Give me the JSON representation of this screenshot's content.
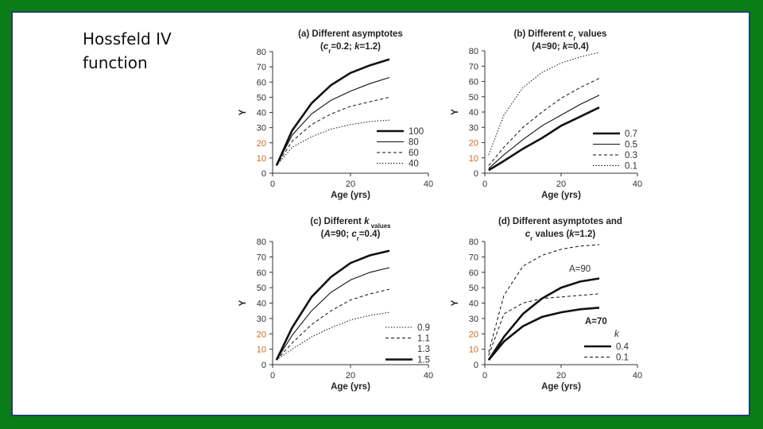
{
  "slide": {
    "title_line1": "Hossfeld IV",
    "title_line2": "function"
  },
  "colors": {
    "frame": "#0a7d16",
    "border": "#1d3f6e",
    "tick_label": "#c96a1a"
  },
  "chart_data": [
    {
      "type": "line",
      "title": "(a)  Different asymptotes",
      "subtitle": "(cr=0.2; k=1.2)",
      "subtitle_parts": [
        "(",
        "c",
        "r",
        "=0.2; ",
        "k",
        "=1.2)"
      ],
      "xlabel": "Age (yrs)",
      "ylabel": "Y",
      "xlim": [
        0,
        40
      ],
      "ylim": [
        0,
        80
      ],
      "xticks": [
        "0",
        "20",
        "40"
      ],
      "yticks": [
        "0",
        "10",
        "20",
        "30",
        "40",
        "50",
        "60",
        "70",
        "80"
      ],
      "x": [
        1,
        5,
        10,
        15,
        20,
        25,
        30
      ],
      "legend_title": "",
      "legend": [
        "100",
        "80",
        "60",
        "40"
      ],
      "series": [
        {
          "name": "100",
          "style": "thick",
          "values": [
            5,
            28,
            46,
            58,
            66,
            71,
            75
          ]
        },
        {
          "name": "80",
          "style": "solid",
          "values": [
            5,
            25,
            39,
            48,
            54,
            59,
            63
          ]
        },
        {
          "name": "60",
          "style": "dashed",
          "values": [
            5,
            21,
            32,
            39,
            44,
            47,
            50
          ]
        },
        {
          "name": "40",
          "style": "dotted",
          "values": [
            5,
            17,
            24,
            29,
            32,
            34,
            35
          ]
        }
      ]
    },
    {
      "type": "line",
      "title": "(b)  Different cr values",
      "title_parts": [
        "(b)  Different ",
        "c",
        "r",
        " values"
      ],
      "subtitle": "(A=90; k=0.4)",
      "subtitle_parts": [
        "(",
        "A",
        "=90; ",
        "k",
        "=0.4)"
      ],
      "xlabel": "Age (yrs)",
      "ylabel": "Y",
      "xlim": [
        0,
        40
      ],
      "ylim": [
        0,
        80
      ],
      "xticks": [
        "0",
        "20",
        "40"
      ],
      "yticks": [
        "0",
        "10",
        "20",
        "30",
        "40",
        "50",
        "60",
        "70",
        "80"
      ],
      "x": [
        1,
        5,
        10,
        15,
        20,
        25,
        30
      ],
      "legend_title": "",
      "legend": [
        "0.7",
        "0.5",
        "0.3",
        "0.1"
      ],
      "series": [
        {
          "name": "0.7",
          "style": "thick",
          "values": [
            2,
            8,
            16,
            23,
            31,
            37,
            43
          ]
        },
        {
          "name": "0.5",
          "style": "solid",
          "values": [
            3,
            12,
            22,
            31,
            38,
            45,
            51
          ]
        },
        {
          "name": "0.3",
          "style": "dashed",
          "values": [
            5,
            17,
            30,
            40,
            49,
            56,
            62
          ]
        },
        {
          "name": "0.1",
          "style": "dotted",
          "values": [
            12,
            38,
            56,
            66,
            72,
            76,
            79
          ]
        }
      ]
    },
    {
      "type": "line",
      "title": "(c)  Different k values",
      "title_parts": [
        "(c)  Different ",
        "k",
        " values"
      ],
      "subtitle": "(A=90; cr=0.4)",
      "subtitle_parts": [
        "(",
        "A",
        "=90; ",
        "c",
        "r",
        "=0.4)"
      ],
      "xlabel": "Age (yrs)",
      "ylabel": "Y",
      "xlim": [
        0,
        40
      ],
      "ylim": [
        0,
        80
      ],
      "xticks": [
        "0",
        "20",
        "40"
      ],
      "yticks": [
        "0",
        "10",
        "20",
        "30",
        "40",
        "50",
        "60",
        "70",
        "80"
      ],
      "x": [
        1,
        5,
        10,
        15,
        20,
        25,
        30
      ],
      "legend_title": "",
      "legend": [
        "0.9",
        "1.1",
        "1.3",
        "1.5"
      ],
      "series": [
        {
          "name": "1.5",
          "style": "thick",
          "values": [
            3,
            24,
            44,
            57,
            66,
            71,
            74
          ]
        },
        {
          "name": "1.3",
          "style": "solid",
          "values": [
            3,
            19,
            35,
            47,
            55,
            60,
            63
          ]
        },
        {
          "name": "1.1",
          "style": "dashed",
          "values": [
            3,
            14,
            26,
            35,
            42,
            46,
            49
          ]
        },
        {
          "name": "0.9",
          "style": "dotted",
          "values": [
            3,
            10,
            18,
            24,
            29,
            32,
            34
          ]
        }
      ]
    },
    {
      "type": "line",
      "title": "(d)  Different asymptotes and",
      "subtitle": "cr values (k=1.2)",
      "subtitle_parts": [
        "c",
        "r",
        " values (",
        "k",
        "=1.2)"
      ],
      "xlabel": "Age (yrs)",
      "ylabel": "Y",
      "xlim": [
        0,
        40
      ],
      "ylim": [
        0,
        80
      ],
      "xticks": [
        "0",
        "20",
        "40"
      ],
      "yticks": [
        "0",
        "10",
        "20",
        "30",
        "40",
        "50",
        "60",
        "70",
        "80"
      ],
      "x": [
        1,
        5,
        10,
        15,
        20,
        25,
        30
      ],
      "legend_title": "k",
      "legend": [
        "0.4",
        "0.1"
      ],
      "annotations": [
        "A=90",
        "A=70"
      ],
      "series": [
        {
          "name": "A=90, k=0.4",
          "style": "thick",
          "values": [
            3,
            18,
            33,
            43,
            50,
            54,
            56
          ]
        },
        {
          "name": "A=90, k=0.1",
          "style": "dashed",
          "values": [
            8,
            45,
            64,
            71,
            75,
            77,
            78
          ]
        },
        {
          "name": "A=70, k=0.4",
          "style": "thick",
          "values": [
            3,
            15,
            25,
            31,
            34,
            36,
            37
          ]
        },
        {
          "name": "A=70, k=0.1",
          "style": "dashed",
          "values": [
            6,
            33,
            40,
            43,
            44,
            45,
            46
          ]
        }
      ]
    }
  ]
}
